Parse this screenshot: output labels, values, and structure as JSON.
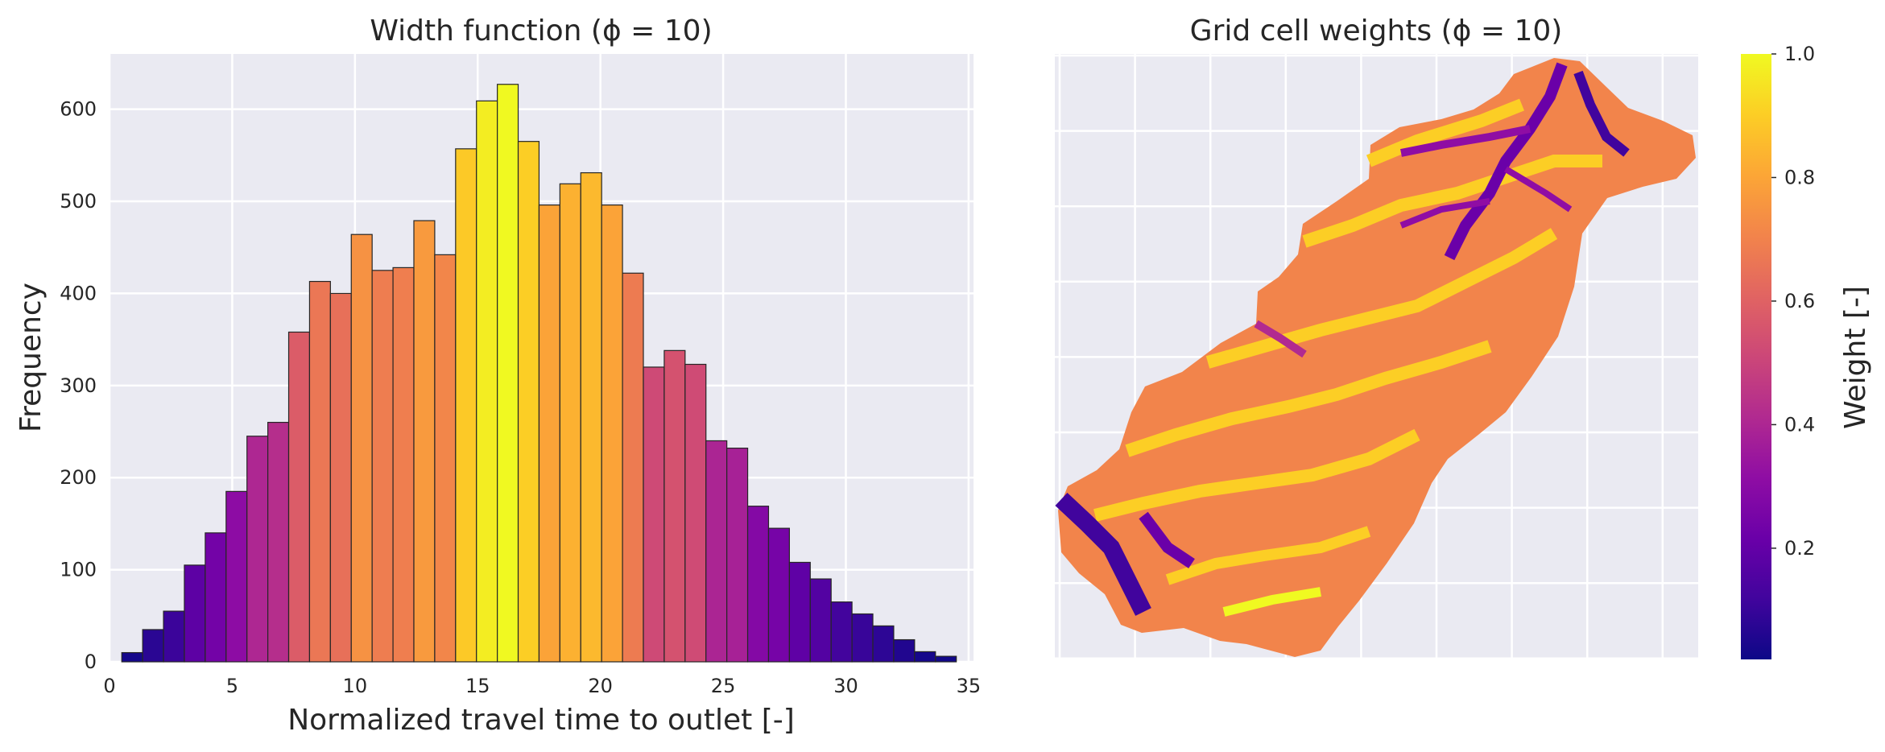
{
  "chart_data": [
    {
      "type": "bar",
      "title": "Width function (ϕ = 10)",
      "xlabel": "Normalized travel time to outlet [-]",
      "ylabel": "Frequency",
      "xlim": [
        0,
        35.2
      ],
      "ylim": [
        0,
        660
      ],
      "xticks": [
        0,
        5,
        10,
        15,
        20,
        25,
        30,
        35
      ],
      "yticks": [
        0,
        100,
        200,
        300,
        400,
        500,
        600
      ],
      "grid": true,
      "colormap": "plasma",
      "bin_edges_start": 0.5,
      "bin_width": 0.85,
      "values": [
        10,
        35,
        55,
        105,
        140,
        185,
        245,
        260,
        358,
        413,
        400,
        464,
        425,
        428,
        479,
        442,
        557,
        609,
        627,
        565,
        496,
        519,
        531,
        496,
        422,
        320,
        338,
        323,
        240,
        232,
        169,
        145,
        108,
        90,
        65,
        52,
        39,
        24,
        11,
        6
      ]
    },
    {
      "type": "heatmap",
      "title": "Grid cell weights (ϕ = 10)",
      "colorbar_label": "Weight [-]",
      "colorbar_ticks": [
        "0.2",
        "0.4",
        "0.6",
        "0.8",
        "1.0"
      ],
      "colormap": "plasma",
      "value_range": [
        0.02,
        1.0
      ],
      "grid": true,
      "axis_tick_labels": false
    }
  ],
  "colors": {
    "axes_background": "#EAEAF2",
    "grid": "#FFFFFF",
    "bar_edge": "#262626"
  }
}
